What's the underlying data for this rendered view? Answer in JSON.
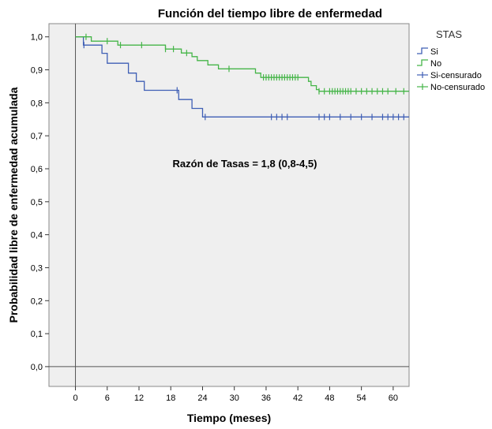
{
  "chart_data": {
    "type": "line",
    "subtype": "kaplan-meier-step",
    "title": "Función del tiempo libre de enfermedad",
    "xlabel": "Tiempo (meses)",
    "ylabel": "Probabilidad libre de enfermedad acumulada",
    "xlim": [
      -5,
      63
    ],
    "ylim": [
      -0.06,
      1.04
    ],
    "x_ticks": [
      0,
      6,
      12,
      18,
      24,
      30,
      36,
      42,
      48,
      54,
      60
    ],
    "y_ticks": [
      0.0,
      0.1,
      0.2,
      0.3,
      0.4,
      0.5,
      0.6,
      0.7,
      0.8,
      0.9,
      1.0
    ],
    "y_tick_labels": [
      "0,0",
      "0,1",
      "0,2",
      "0,3",
      "0,4",
      "0,5",
      "0,6",
      "0,7",
      "0,8",
      "0,9",
      "1,0"
    ],
    "reference_lines": {
      "x": 0,
      "y": 0
    },
    "plot_background": "#efefef",
    "legend": {
      "title": "STAS",
      "position": "top-right-outside",
      "entries": [
        {
          "label": "Si",
          "kind": "line",
          "color": "#3f5fb5"
        },
        {
          "label": "No",
          "kind": "line",
          "color": "#45b548"
        },
        {
          "label": "Si-censurado",
          "kind": "censor",
          "color": "#3f5fb5"
        },
        {
          "label": "No-censurado",
          "kind": "censor",
          "color": "#45b548"
        }
      ]
    },
    "annotation": "Razón de Tasas = 1,8 (0,8-4,5)",
    "series": [
      {
        "name": "Si",
        "color": "#3f5fb5",
        "steps": [
          [
            0,
            1.0
          ],
          [
            1.5,
            0.975
          ],
          [
            5,
            0.95
          ],
          [
            6,
            0.92
          ],
          [
            10,
            0.89
          ],
          [
            11.5,
            0.865
          ],
          [
            13,
            0.838
          ],
          [
            19.5,
            0.81
          ],
          [
            22,
            0.783
          ],
          [
            24,
            0.757
          ],
          [
            63,
            0.757
          ]
        ],
        "censored": [
          1.6,
          19.2,
          24.5,
          37,
          38,
          39,
          40,
          46,
          47,
          48,
          50,
          52,
          54,
          56,
          58,
          59,
          60,
          61,
          62
        ]
      },
      {
        "name": "No",
        "color": "#45b548",
        "steps": [
          [
            0,
            1.0
          ],
          [
            3,
            0.987
          ],
          [
            8,
            0.975
          ],
          [
            17,
            0.963
          ],
          [
            20,
            0.951
          ],
          [
            22,
            0.94
          ],
          [
            23,
            0.928
          ],
          [
            25,
            0.915
          ],
          [
            27,
            0.903
          ],
          [
            34,
            0.89
          ],
          [
            35,
            0.877
          ],
          [
            44,
            0.865
          ],
          [
            44.5,
            0.852
          ],
          [
            45.5,
            0.84
          ],
          [
            46,
            0.835
          ],
          [
            63,
            0.835
          ]
        ],
        "censored": [
          2,
          6,
          8.5,
          12.5,
          17,
          18.5,
          21,
          29,
          35.5,
          36,
          36.5,
          37,
          37.5,
          38,
          38.5,
          39,
          39.5,
          40,
          40.5,
          41,
          41.5,
          42,
          46,
          47,
          48,
          48.5,
          49,
          49.5,
          50,
          50.5,
          51,
          51.5,
          52,
          53,
          54,
          55,
          56,
          57,
          58,
          59,
          60.5,
          62
        ]
      }
    ]
  }
}
